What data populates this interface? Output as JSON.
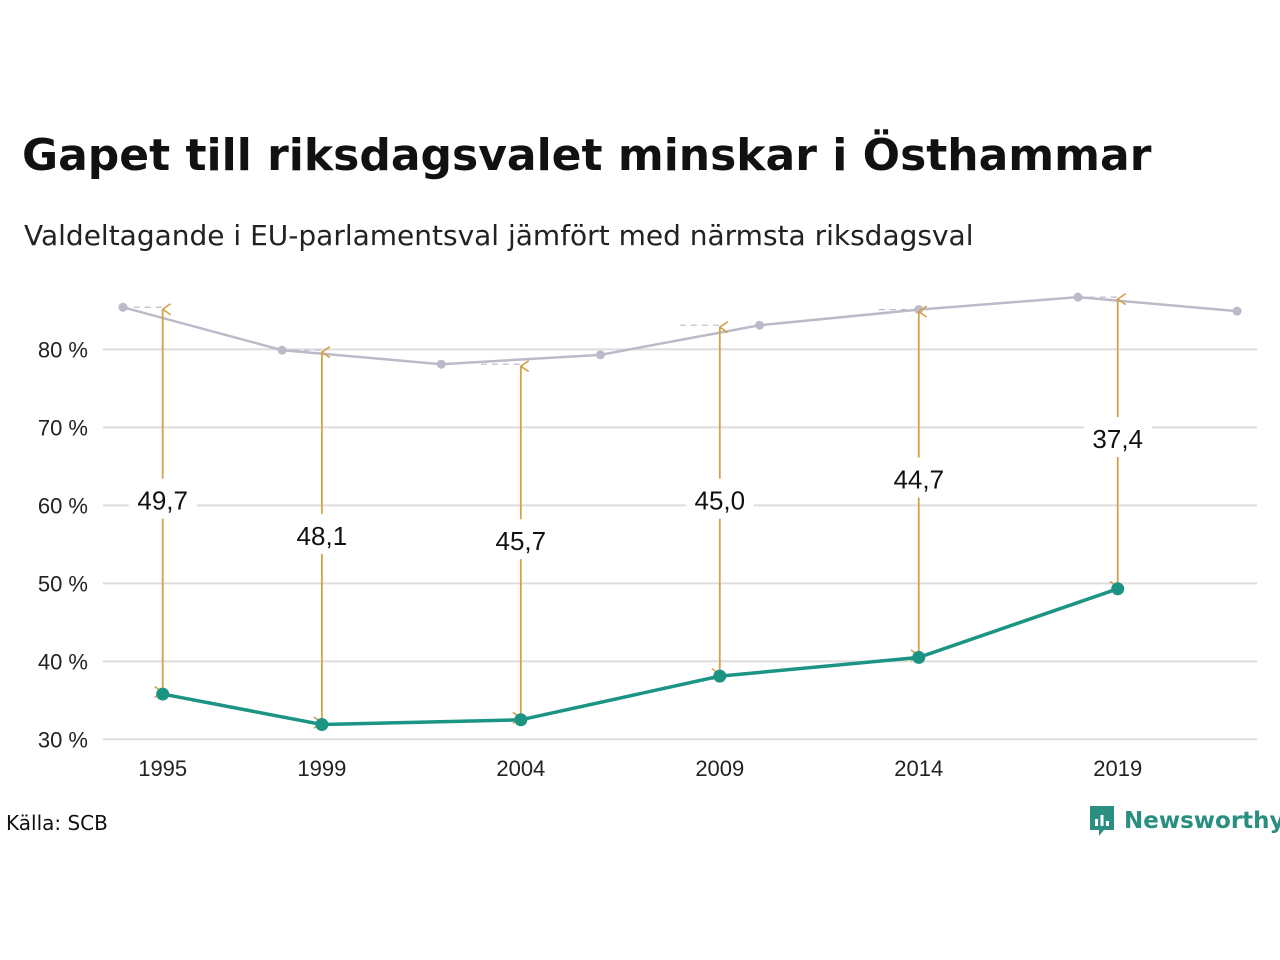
{
  "header": {
    "title": "Gapet till riksdagsvalet minskar i Östhammar",
    "subtitle": "Valdeltagande i EU-parlamentsval jämfört med närmsta riksdagsval"
  },
  "footer": {
    "source": "Källa: SCB",
    "brand": "Newsworthy"
  },
  "colors": {
    "riksdag": "#bcbac9",
    "eu": "#1b9483",
    "gap_arrow": "#d2a24a",
    "grid": "#dddddd",
    "brand": "#2a8f80"
  },
  "chart_data": {
    "type": "line",
    "xlim": [
      1993.5,
      2022.5
    ],
    "ylim": [
      28.5,
      88
    ],
    "yticks": [
      30,
      40,
      50,
      60,
      70,
      80
    ],
    "ytick_labels": [
      "30 %",
      "40 %",
      "50 %",
      "60 %",
      "70 %",
      "80 %"
    ],
    "xticks": [
      1995,
      1999,
      2004,
      2009,
      2014,
      2019
    ],
    "xtick_labels": [
      "1995",
      "1999",
      "2004",
      "2009",
      "2014",
      "2019"
    ],
    "grid": "horizontal",
    "series": [
      {
        "key": "riksdag",
        "x": [
          1994,
          1998,
          2002,
          2006,
          2010,
          2014,
          2018,
          2022
        ],
        "values": [
          85.4,
          79.9,
          78.1,
          79.3,
          83.1,
          85.1,
          86.7,
          84.9
        ]
      },
      {
        "key": "eu",
        "x": [
          1995,
          1999,
          2004,
          2009,
          2014,
          2019
        ],
        "values": [
          35.8,
          31.9,
          32.5,
          38.1,
          40.5,
          49.3
        ]
      }
    ],
    "gaps": [
      {
        "x": 1995,
        "from": 35.8,
        "to": 85.4,
        "label": "49,7",
        "label_y": 60.6
      },
      {
        "x": 1999,
        "from": 31.9,
        "to": 79.9,
        "label": "48,1",
        "label_y": 56.1
      },
      {
        "x": 2004,
        "from": 32.5,
        "to": 78.1,
        "label": "45,7",
        "label_y": 55.4
      },
      {
        "x": 2009,
        "from": 38.1,
        "to": 83.1,
        "label": "45,0",
        "label_y": 60.6
      },
      {
        "x": 2014,
        "from": 40.5,
        "to": 85.1,
        "label": "44,7",
        "label_y": 63.3
      },
      {
        "x": 2019,
        "from": 49.3,
        "to": 86.7,
        "label": "37,4",
        "label_y": 68.5
      }
    ]
  }
}
